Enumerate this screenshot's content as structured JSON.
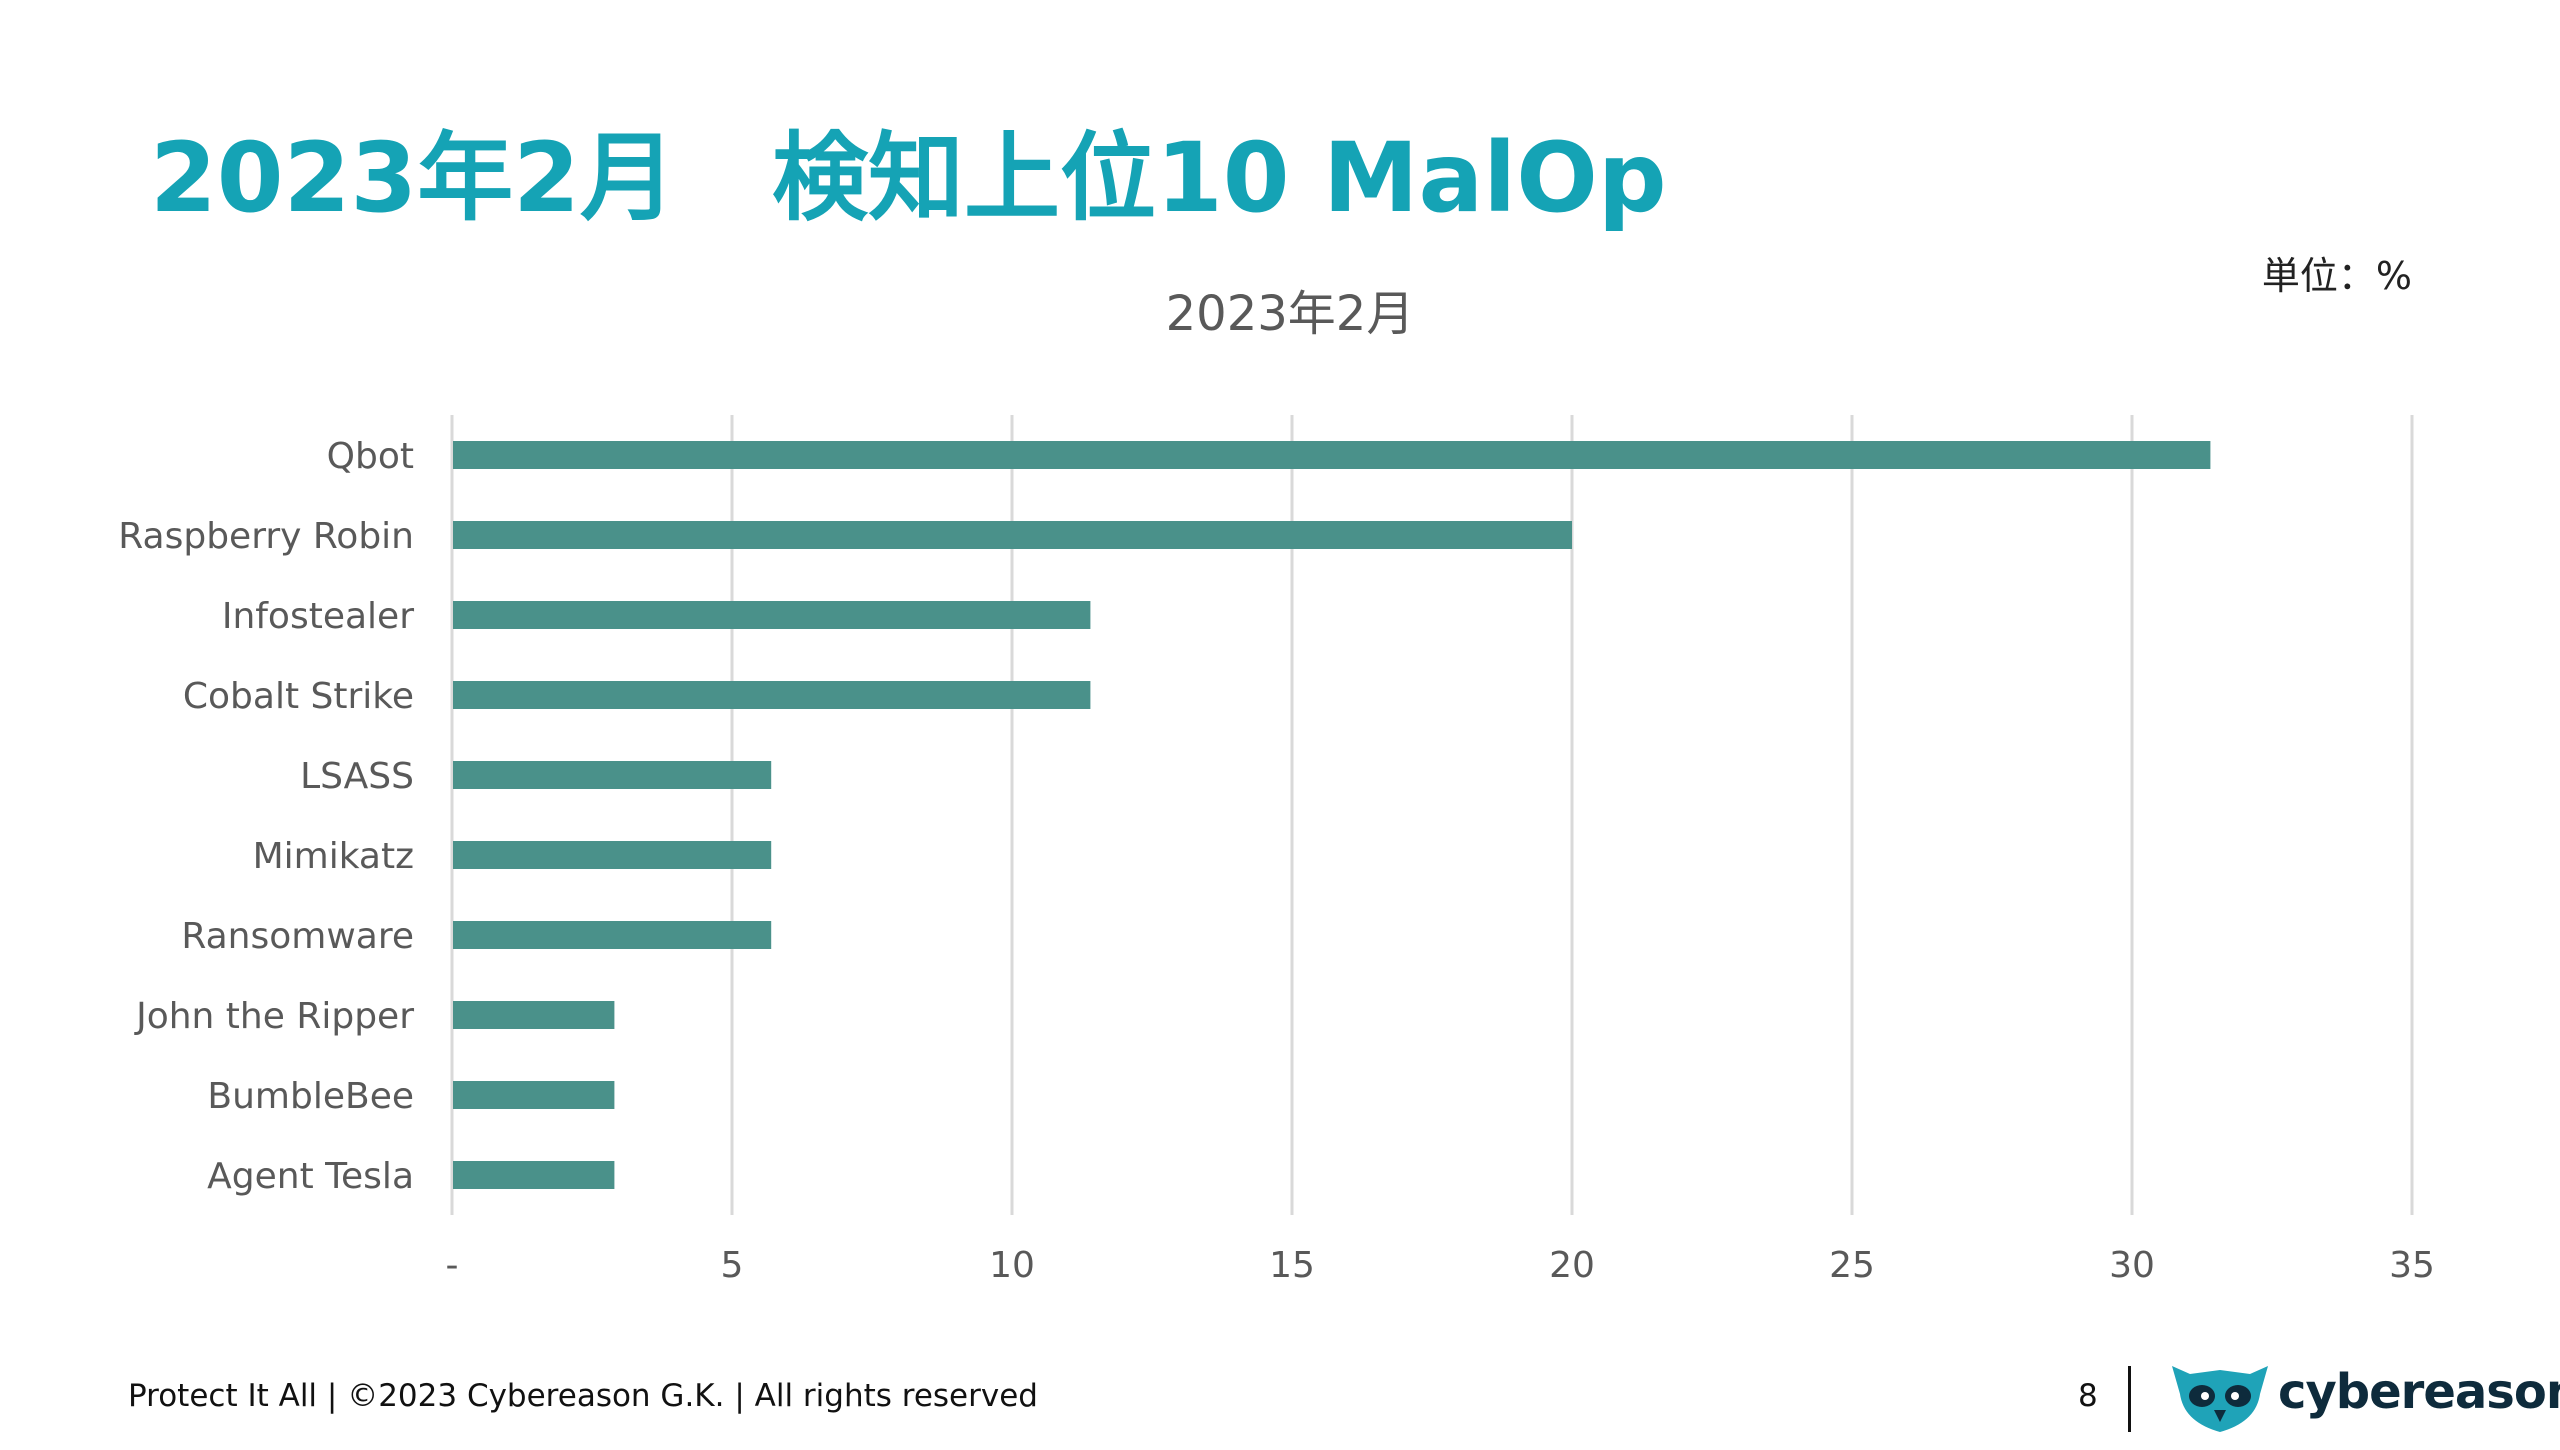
{
  "slide": {
    "title": "2023年2月　検知上位10 MalOp",
    "unit": "単位：%"
  },
  "chart_data": {
    "type": "bar",
    "orientation": "horizontal",
    "title": "2023年2月",
    "categories": [
      "Qbot",
      "Raspberry Robin",
      "Infostealer",
      "Cobalt Strike",
      "LSASS",
      "Mimikatz",
      "Ransomware",
      "John the Ripper",
      "BumbleBee",
      "Agent Tesla"
    ],
    "values": [
      31.4,
      20.0,
      11.4,
      11.4,
      5.7,
      5.7,
      5.7,
      2.9,
      2.9,
      2.9
    ],
    "xlim": [
      0,
      35
    ],
    "xticks": [
      0,
      5,
      10,
      15,
      20,
      25,
      30,
      35
    ],
    "xtick_labels": [
      "-",
      "5",
      "10",
      "15",
      "20",
      "25",
      "30",
      "35"
    ],
    "grid": "vertical",
    "bar_color": "#4A918A",
    "grid_color": "#D9D9D9"
  },
  "footer": {
    "copyright": "Protect It All | ©2023 Cybereason G.K. | All rights reserved",
    "page": "8",
    "brand": "cybereason"
  },
  "colors": {
    "title": "#15A3B5",
    "brand_logo": "#1FA3B8"
  }
}
